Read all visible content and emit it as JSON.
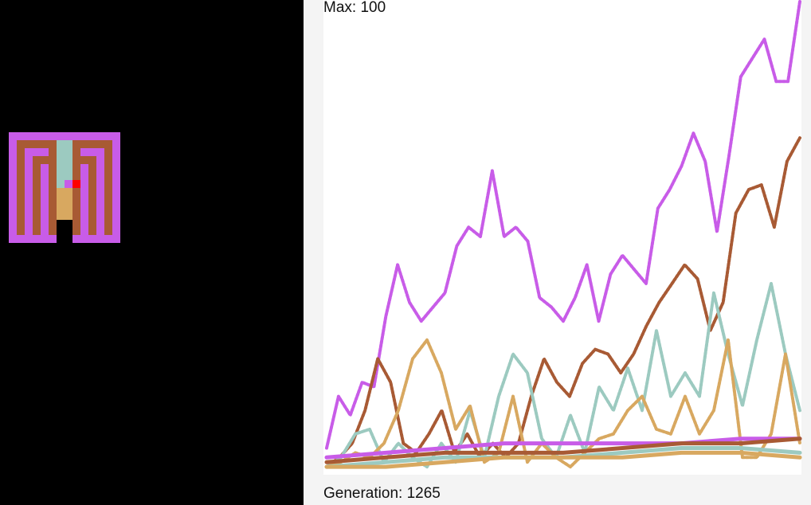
{
  "labels": {
    "max": "Max: 100",
    "generation": "Generation: 1265"
  },
  "chart_data": {
    "type": "line",
    "ylim": [
      0,
      100
    ],
    "series": [
      {
        "color": "#c85ce8",
        "values": [
          5,
          16,
          12,
          19,
          18,
          33,
          44,
          36,
          32,
          35,
          38,
          48,
          52,
          50,
          64,
          50,
          52,
          49,
          37,
          35,
          32,
          37,
          44,
          32,
          42,
          46,
          43,
          40,
          56,
          60,
          65,
          72,
          66,
          51,
          67,
          84,
          88,
          92,
          83,
          83,
          100
        ]
      },
      {
        "color": "#a85a34",
        "values": [
          1,
          3,
          6,
          13,
          24,
          19,
          6,
          4,
          8,
          13,
          4,
          8,
          3,
          6,
          3,
          6,
          16,
          24,
          19,
          16,
          23,
          26,
          25,
          21,
          25,
          31,
          36,
          40,
          44,
          41,
          30,
          36,
          55,
          60,
          61,
          52,
          66,
          71
        ]
      },
      {
        "color": "#9ccac0",
        "values": [
          1,
          3,
          8,
          9,
          2,
          6,
          3,
          1,
          6,
          2,
          13,
          3,
          16,
          25,
          21,
          7,
          3,
          12,
          4,
          18,
          13,
          22,
          13,
          30,
          16,
          21,
          16,
          38,
          25,
          14,
          28,
          40,
          25,
          13
        ]
      },
      {
        "color": "#d8a860",
        "values": [
          1,
          2,
          4,
          3,
          6,
          13,
          24,
          28,
          21,
          9,
          14,
          2,
          4,
          16,
          2,
          6,
          3,
          1,
          4,
          7,
          8,
          13,
          16,
          9,
          8,
          16,
          8,
          13,
          28,
          3,
          3,
          8,
          25,
          6
        ]
      },
      {
        "color": "#c85ce8",
        "values": [
          3,
          4,
          5,
          6,
          6,
          6,
          6,
          7,
          7
        ]
      },
      {
        "color": "#a85a34",
        "values": [
          2,
          3,
          4,
          4,
          4,
          5,
          6,
          6,
          7
        ]
      },
      {
        "color": "#9ccac0",
        "values": [
          1,
          2,
          3,
          3,
          3,
          4,
          5,
          5,
          4
        ]
      },
      {
        "color": "#d8a860",
        "values": [
          1,
          1,
          2,
          3,
          3,
          3,
          4,
          4,
          3
        ]
      }
    ]
  }
}
